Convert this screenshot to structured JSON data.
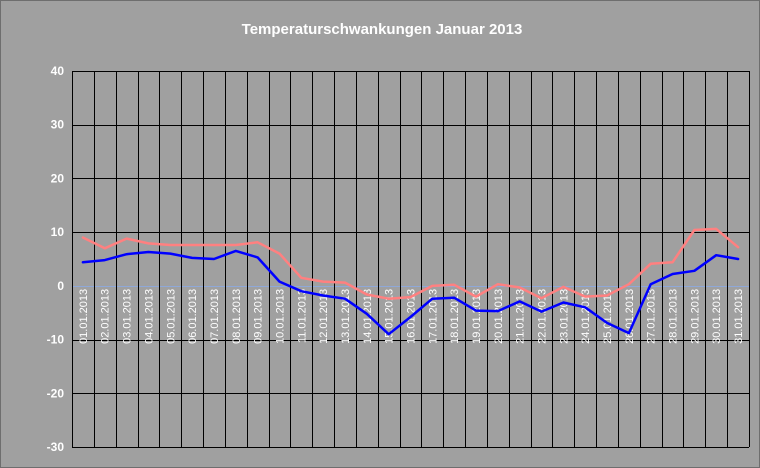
{
  "chart_data": {
    "type": "line",
    "title": "Temperaturschwankungen Januar 2013",
    "xlabel": "",
    "ylabel": "",
    "ylim": [
      -30,
      40
    ],
    "yticks": [
      40,
      30,
      20,
      10,
      0,
      -10,
      -20,
      -30
    ],
    "grid": true,
    "legend": "none",
    "categories": [
      "01.01.2013",
      "02.01.2013",
      "03.01.2013",
      "04.01.2013",
      "05.01.2013",
      "06.01.2013",
      "07.01.2013",
      "08.01.2013",
      "09.01.2013",
      "10.01.2013",
      "11.01.2013",
      "12.01.2013",
      "13.01.2013",
      "14.01.2013",
      "15.01.2013",
      "16.01.2013",
      "17.01.2013",
      "18.01.2013",
      "19.01.2013",
      "20.01.2013",
      "21.01.2013",
      "22.01.2013",
      "23.01.2013",
      "24.01.2013",
      "25.01.2013",
      "26.01.2013",
      "27.01.2013",
      "28.01.2013",
      "29.01.2013",
      "30.01.2013",
      "31.01.2013"
    ],
    "series": [
      {
        "color": "#ff8080",
        "values": [
          9.0,
          7.0,
          8.8,
          7.9,
          7.6,
          7.6,
          7.6,
          7.6,
          8.1,
          6.0,
          1.5,
          0.8,
          0.6,
          -1.6,
          -2.4,
          -2.1,
          0.0,
          0.2,
          -2.0,
          0.3,
          -0.3,
          -2.3,
          -0.2,
          -2.0,
          -1.8,
          0.3,
          4.1,
          4.4,
          10.4,
          10.6,
          7.2
        ]
      },
      {
        "color": "#0000ff",
        "values": [
          4.4,
          4.8,
          5.9,
          6.3,
          6.0,
          5.2,
          5.0,
          6.5,
          5.3,
          0.8,
          -1.0,
          -1.8,
          -2.4,
          -5.2,
          -9.0,
          -5.8,
          -2.4,
          -2.2,
          -4.6,
          -4.7,
          -2.9,
          -4.8,
          -3.1,
          -4.0,
          -6.9,
          -8.8,
          0.3,
          2.2,
          2.8,
          5.7,
          5.0
        ]
      }
    ]
  },
  "colors": {
    "background": "#a0a0a0",
    "gridline": "#000000",
    "zero_line": "#8fa8d8",
    "text": "#ffffff"
  }
}
